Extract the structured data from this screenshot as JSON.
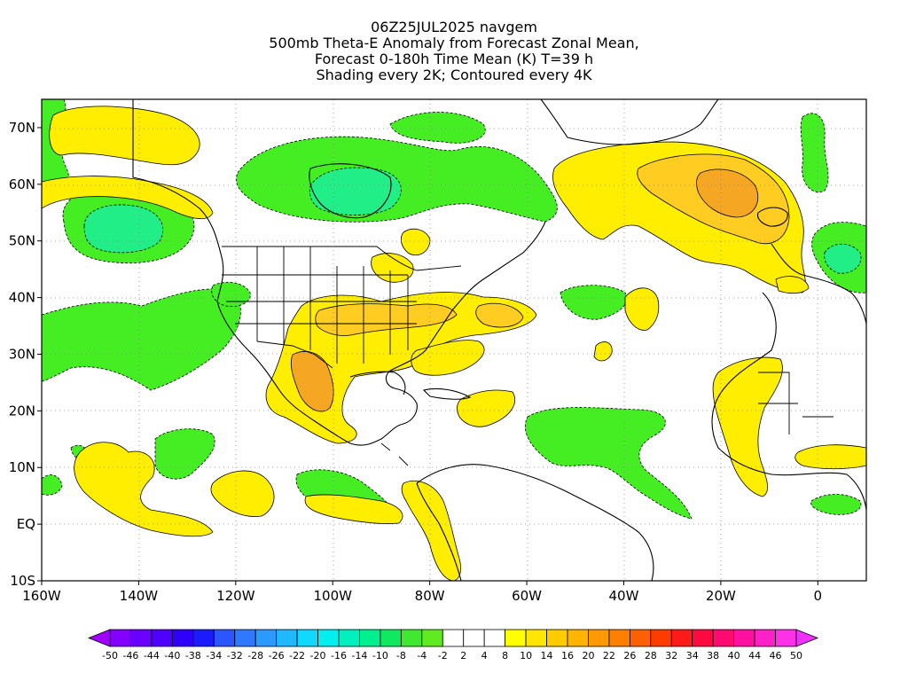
{
  "title": {
    "line1": "06Z25JUL2025 navgem",
    "line2": "500mb Theta-E Anomaly from Forecast Zonal Mean,",
    "line3": "Forecast 0-180h Time Mean (K) T=39 h",
    "line4": "Shading every 2K; Contoured every 4K"
  },
  "axes": {
    "lat_labels": [
      "70N",
      "60N",
      "50N",
      "40N",
      "30N",
      "20N",
      "10N",
      "EQ",
      "10S"
    ],
    "lat_values": [
      70,
      60,
      50,
      40,
      30,
      20,
      10,
      0,
      -10
    ],
    "lon_labels": [
      "160W",
      "140W",
      "120W",
      "100W",
      "80W",
      "60W",
      "40W",
      "20W",
      "0"
    ],
    "lon_values": [
      -160,
      -140,
      -120,
      -100,
      -80,
      -60,
      -40,
      -20,
      0
    ],
    "lon_range": [
      -160,
      10
    ],
    "lat_range": [
      -10,
      75
    ],
    "grid": "dotted"
  },
  "colorbar": {
    "labels": [
      "-50",
      "-46",
      "-44",
      "-40",
      "-38",
      "-34",
      "-32",
      "-28",
      "-26",
      "-22",
      "-20",
      "-16",
      "-14",
      "-10",
      "-8",
      "-4",
      "-2",
      "2",
      "4",
      "8",
      "10",
      "14",
      "16",
      "20",
      "22",
      "26",
      "28",
      "32",
      "34",
      "38",
      "40",
      "44",
      "46",
      "50"
    ],
    "colors": [
      "#a000ff",
      "#8400ff",
      "#6a00ff",
      "#5000ff",
      "#3000ff",
      "#1b1bff",
      "#2a55ff",
      "#2f78ff",
      "#2a9aff",
      "#1eb9ff",
      "#10d8ff",
      "#00f0f0",
      "#00f0c0",
      "#00f090",
      "#10e860",
      "#40e830",
      "#60ea20",
      "#ffffff",
      "#ffffff",
      "#ffffff",
      "#ffff00",
      "#ffe600",
      "#ffcc00",
      "#ffb400",
      "#ff9a00",
      "#ff8000",
      "#ff6000",
      "#ff3c00",
      "#ff1a1a",
      "#ff0a40",
      "#ff0a70",
      "#ff10a0",
      "#ff20c8",
      "#ff30e8",
      "#f030ff"
    ]
  },
  "colors": {
    "green": "#44ee22",
    "green_light": "#66ee22",
    "teal": "#22ee88",
    "yellow": "#ffee00",
    "orange": "#ffcc22",
    "dark_orange": "#f5a623",
    "coast": "#000000"
  }
}
